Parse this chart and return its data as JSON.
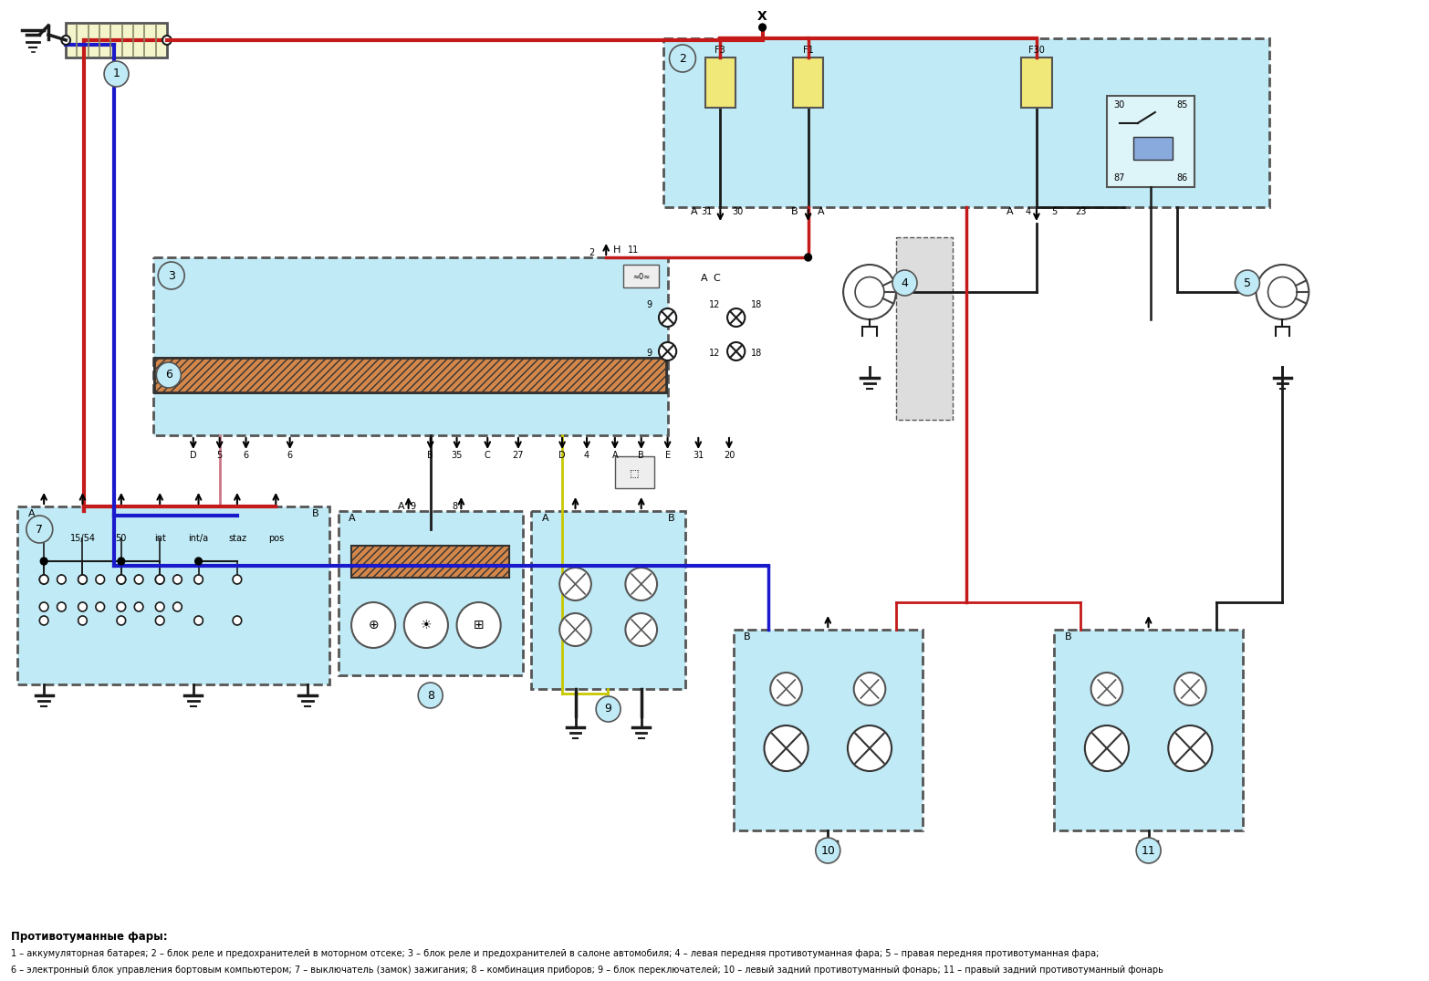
{
  "bg_color": "#ffffff",
  "fig_width": 15.66,
  "fig_height": 10.75,
  "caption_bold": "Противотуманные фары:",
  "caption_line1": "1 – аккумуляторная батарея; 2 – блок реле и предохранителей в моторном отсеке; 3 – блок реле и предохранителей в салоне автомобиля; 4 – левая передняя противотуманная фара; 5 – правая передняя противотуманная фара;",
  "caption_line2": "6 – электронный блок управления бортовым компьютером; 7 – выключатель (замок) зажигания; 8 – комбинация приборов; 9 – блок переключателей; 10 – левый задний противотуманный фонарь; 11 – правый задний противотуманный фонарь",
  "wire_red": "#c41a1a",
  "wire_blue": "#1a1acc",
  "wire_dark": "#1a1a1a",
  "wire_yellow": "#c8c800",
  "wire_pink": "#cc7788",
  "wire_brown": "#884422",
  "box_cyan": "#c0eaf5",
  "box_orange": "#d4874a",
  "box_yellow_light": "#f5f0c0",
  "box_border_dashed": "#444444",
  "relay_fill": "#aad8e8",
  "label_color": "#000000"
}
